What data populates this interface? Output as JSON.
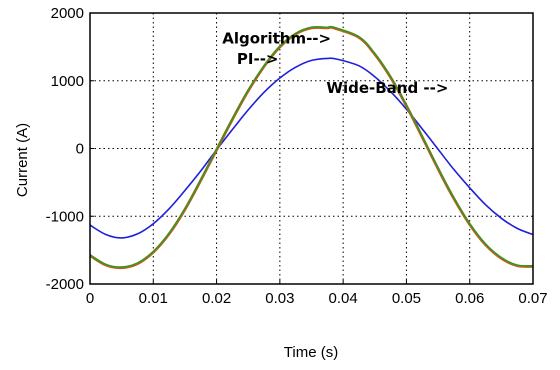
{
  "chart_data": {
    "type": "line",
    "title": "",
    "xlabel": "Time (s)",
    "ylabel": "Current (A)",
    "xlim": [
      0,
      0.07
    ],
    "ylim": [
      -2000,
      2000
    ],
    "x_ticks": [
      0,
      0.01,
      0.02,
      0.03,
      0.04,
      0.05,
      0.06,
      0.07
    ],
    "x_tick_labels": [
      "0",
      "0.01",
      "0.02",
      "0.03",
      "0.04",
      "0.05",
      "0.06",
      "0.07"
    ],
    "y_ticks": [
      -2000,
      -1000,
      0,
      1000,
      2000
    ],
    "y_tick_labels": [
      "-2000",
      "-1000",
      "0",
      "1000",
      "2000"
    ],
    "grid": true,
    "grid_style": "dotted",
    "annotations": [
      {
        "text": "Algorithm-->",
        "x": 0.0295,
        "y": 1550
      },
      {
        "text": "PI-->",
        "x": 0.0265,
        "y": 1250
      },
      {
        "text": "Wide-Band -->",
        "x": 0.047,
        "y": 820
      }
    ],
    "series": [
      {
        "color": "#1f1fdc",
        "x": [
          0,
          0.0025,
          0.005,
          0.0075,
          0.01,
          0.0125,
          0.015,
          0.0175,
          0.02,
          0.0225,
          0.025,
          0.0275,
          0.03,
          0.0325,
          0.035,
          0.0375,
          0.039,
          0.0425,
          0.045,
          0.0475,
          0.05,
          0.0525,
          0.055,
          0.0575,
          0.06,
          0.0625,
          0.065,
          0.0675,
          0.07
        ],
        "y": [
          -1130,
          -1270,
          -1320,
          -1260,
          -1110,
          -890,
          -620,
          -330,
          -20,
          280,
          570,
          830,
          1040,
          1200,
          1300,
          1330,
          1320,
          1220,
          1060,
          840,
          580,
          290,
          -10,
          -310,
          -580,
          -830,
          -1030,
          -1180,
          -1270
        ]
      },
      {
        "color": "#c85a1e",
        "x": [
          0,
          0.0025,
          0.005,
          0.0075,
          0.01,
          0.0125,
          0.015,
          0.0175,
          0.02,
          0.0225,
          0.025,
          0.0275,
          0.03,
          0.0325,
          0.035,
          0.0375,
          0.0385,
          0.0425,
          0.045,
          0.0475,
          0.05,
          0.0525,
          0.055,
          0.0575,
          0.06,
          0.0625,
          0.065,
          0.0675,
          0.07
        ],
        "y": [
          -1580,
          -1720,
          -1760,
          -1700,
          -1530,
          -1260,
          -900,
          -470,
          -20,
          430,
          850,
          1210,
          1500,
          1690,
          1780,
          1780,
          1780,
          1640,
          1390,
          1050,
          630,
          170,
          -300,
          -740,
          -1120,
          -1420,
          -1620,
          -1730,
          -1740
        ]
      },
      {
        "color": "#22a022",
        "x": [
          0,
          0.0025,
          0.005,
          0.0075,
          0.01,
          0.0125,
          0.015,
          0.0175,
          0.02,
          0.0225,
          0.025,
          0.0275,
          0.03,
          0.0325,
          0.035,
          0.0375,
          0.0385,
          0.0425,
          0.045,
          0.0475,
          0.05,
          0.0525,
          0.055,
          0.0575,
          0.06,
          0.0625,
          0.065,
          0.0675,
          0.07
        ],
        "y": [
          -1570,
          -1710,
          -1750,
          -1690,
          -1520,
          -1250,
          -890,
          -460,
          -10,
          440,
          860,
          1220,
          1510,
          1700,
          1790,
          1790,
          1790,
          1650,
          1400,
          1060,
          640,
          180,
          -290,
          -730,
          -1110,
          -1410,
          -1610,
          -1720,
          -1730
        ]
      }
    ]
  }
}
